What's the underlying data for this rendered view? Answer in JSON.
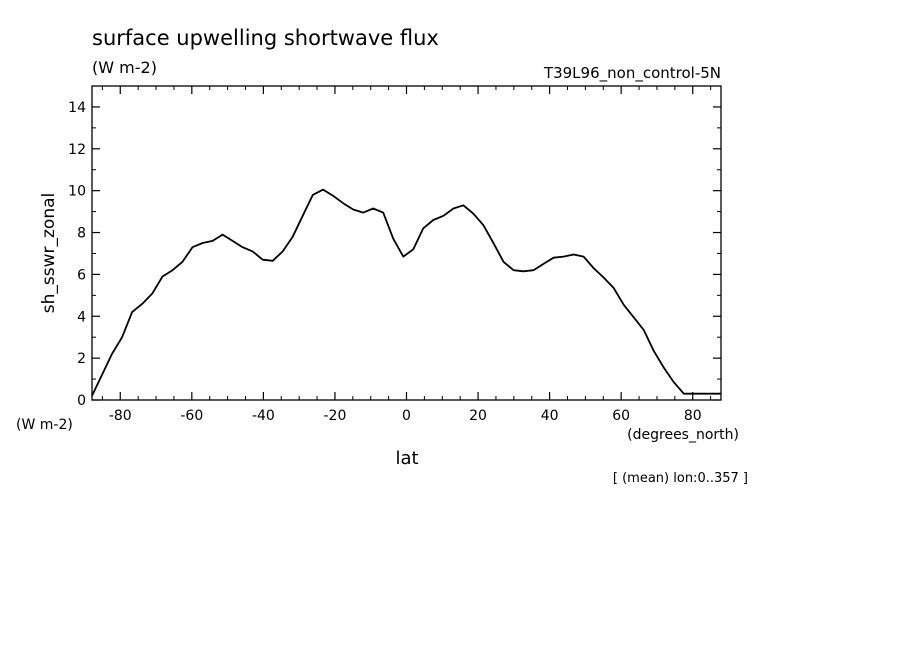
{
  "chart_data": {
    "type": "line",
    "title": "surface upwelling shortwave flux",
    "title_units": "(W m-2)",
    "run_label": "T39L96_non_control-5N",
    "ylabel": "sh_sswr_zonal",
    "y_units": "(W m-2)",
    "xlabel": "lat",
    "x_units": "(degrees_north)",
    "footnote": "[ (mean) lon:0..357 ]",
    "xlim": [
      -87.9,
      87.9
    ],
    "ylim": [
      0,
      15
    ],
    "x_ticks": [
      -80,
      -60,
      -40,
      -20,
      0,
      20,
      40,
      60,
      80
    ],
    "y_ticks": [
      0,
      2,
      4,
      6,
      8,
      10,
      12,
      14
    ],
    "x_tick_labels": [
      "-80",
      "-60",
      "-40",
      "-20",
      "0",
      "20",
      "40",
      "60",
      "80"
    ],
    "y_tick_labels": [
      "0",
      "2",
      "4",
      "6",
      "8",
      "10",
      "12",
      "14"
    ],
    "grid": false,
    "series": [
      {
        "x": [
          -87.9,
          -85.1,
          -82.3,
          -79.5,
          -76.7,
          -73.8,
          -71.0,
          -68.2,
          -65.4,
          -62.6,
          -59.8,
          -57.0,
          -54.2,
          -51.4,
          -48.6,
          -45.8,
          -43.0,
          -40.2,
          -37.4,
          -34.6,
          -31.8,
          -29.0,
          -26.2,
          -23.3,
          -20.5,
          -17.7,
          -14.9,
          -12.1,
          -9.3,
          -6.5,
          -3.7,
          -0.9,
          1.9,
          4.7,
          7.5,
          10.3,
          13.1,
          15.9,
          18.7,
          21.5,
          24.3,
          27.1,
          29.9,
          32.7,
          35.5,
          38.3,
          41.1,
          43.9,
          46.7,
          49.5,
          52.3,
          55.1,
          57.9,
          60.7,
          63.5,
          66.3,
          69.1,
          71.9,
          74.7,
          77.5,
          80.3,
          83.1,
          85.9,
          87.9
        ],
        "y": [
          0.2,
          1.2,
          2.2,
          3.0,
          4.2,
          4.6,
          5.1,
          5.9,
          6.2,
          6.6,
          7.3,
          7.5,
          7.6,
          7.9,
          7.6,
          7.3,
          7.1,
          6.7,
          6.65,
          7.1,
          7.8,
          8.8,
          9.8,
          10.05,
          9.75,
          9.4,
          9.1,
          8.95,
          9.15,
          8.95,
          7.7,
          6.85,
          7.2,
          8.2,
          8.6,
          8.8,
          9.15,
          9.3,
          8.9,
          8.35,
          7.5,
          6.6,
          6.2,
          6.15,
          6.2,
          6.5,
          6.8,
          6.85,
          6.95,
          6.85,
          6.3,
          5.85,
          5.35,
          4.55,
          3.95,
          3.35,
          2.35,
          1.55,
          0.85,
          0.3,
          0.3,
          0.3,
          0.3,
          0.3
        ]
      }
    ]
  }
}
